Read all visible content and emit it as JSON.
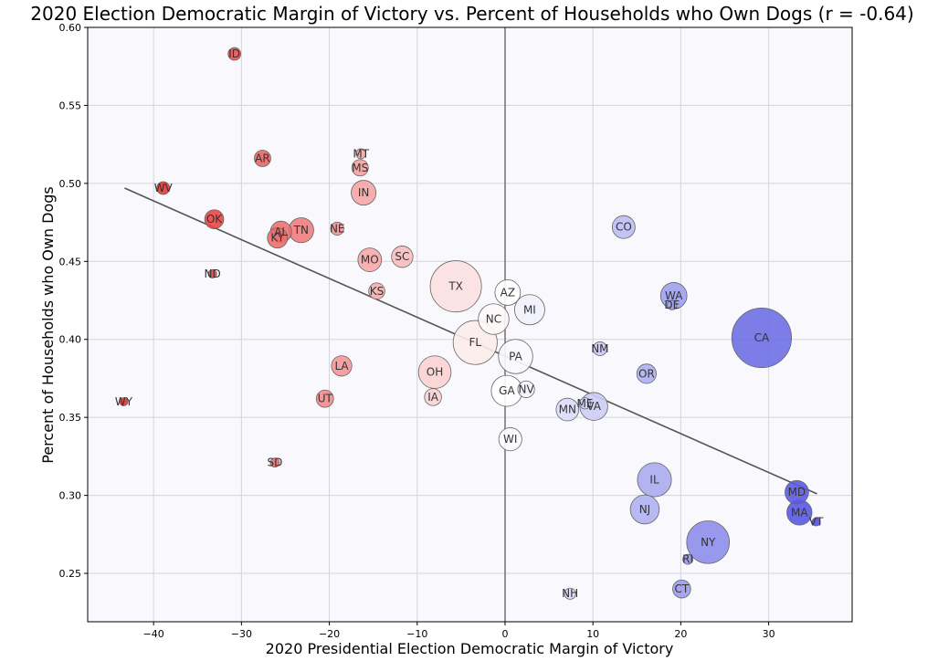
{
  "chart_data": {
    "type": "scatter",
    "title": "2020 Election Democratic Margin of Victory vs. Percent of Households who Own Dogs (r = -0.64)",
    "xlabel": "2020 Presidential Election Democratic Margin of Victory",
    "ylabel": "Percent of Households who Own Dogs",
    "xlim": [
      -47.5,
      39.5
    ],
    "ylim": [
      0.219,
      0.6
    ],
    "xticks": [
      -40,
      -30,
      -20,
      -10,
      0,
      10,
      20,
      30
    ],
    "yticks": [
      0.25,
      0.3,
      0.35,
      0.4,
      0.45,
      0.5,
      0.55,
      0.6
    ],
    "xtick_labels": [
      "−40",
      "−30",
      "−20",
      "−10",
      "0",
      "10",
      "20",
      "30"
    ],
    "ytick_labels": [
      "0.25",
      "0.30",
      "0.35",
      "0.40",
      "0.45",
      "0.50",
      "0.55",
      "0.60"
    ],
    "grid": true,
    "vertical_reference_line_x": 0,
    "point_size_encoding": "state population",
    "point_color_encoding": "margin (red = Republican, blue = Democratic)",
    "colors": {
      "background": "#f8f8fd",
      "republican": "#e83535",
      "neutral": "#ffffff",
      "democratic": "#4d4de0",
      "trendline": "#555555",
      "reference_line": "#7a7a7a",
      "grid": "#d4d4dc"
    },
    "trendline": {
      "x": [
        -43.3,
        35.5
      ],
      "y": [
        0.497,
        0.301
      ]
    },
    "points": [
      {
        "label": "ID",
        "x": -30.8,
        "y": 0.583,
        "pop": 1.8
      },
      {
        "label": "MT",
        "x": -16.4,
        "y": 0.519,
        "pop": 1.1
      },
      {
        "label": "AR",
        "x": -27.6,
        "y": 0.516,
        "pop": 3.0
      },
      {
        "label": "MS",
        "x": -16.5,
        "y": 0.51,
        "pop": 3.0
      },
      {
        "label": "WV",
        "x": -38.9,
        "y": 0.497,
        "pop": 1.8
      },
      {
        "label": "IN",
        "x": -16.1,
        "y": 0.494,
        "pop": 6.8
      },
      {
        "label": "OK",
        "x": -33.1,
        "y": 0.477,
        "pop": 4.0
      },
      {
        "label": "AL",
        "x": -25.5,
        "y": 0.469,
        "pop": 5.0
      },
      {
        "label": "TN",
        "x": -23.2,
        "y": 0.47,
        "pop": 6.9
      },
      {
        "label": "NE",
        "x": -19.1,
        "y": 0.471,
        "pop": 1.9
      },
      {
        "label": "KY",
        "x": -25.9,
        "y": 0.465,
        "pop": 4.5
      },
      {
        "label": "SC",
        "x": -11.7,
        "y": 0.453,
        "pop": 5.1
      },
      {
        "label": "MO",
        "x": -15.4,
        "y": 0.451,
        "pop": 6.2
      },
      {
        "label": "ND",
        "x": -33.3,
        "y": 0.442,
        "pop": 0.8
      },
      {
        "label": "KS",
        "x": -14.6,
        "y": 0.431,
        "pop": 2.9
      },
      {
        "label": "TX",
        "x": -5.6,
        "y": 0.434,
        "pop": 29.1
      },
      {
        "label": "AZ",
        "x": 0.3,
        "y": 0.43,
        "pop": 7.2
      },
      {
        "label": "CO",
        "x": 13.5,
        "y": 0.472,
        "pop": 5.8
      },
      {
        "label": "WA",
        "x": 19.2,
        "y": 0.428,
        "pop": 7.7
      },
      {
        "label": "DE",
        "x": 19.0,
        "y": 0.422,
        "pop": 1.0
      },
      {
        "label": "MI",
        "x": 2.8,
        "y": 0.419,
        "pop": 10.1
      },
      {
        "label": "NC",
        "x": -1.3,
        "y": 0.413,
        "pop": 10.4
      },
      {
        "label": "CA",
        "x": 29.2,
        "y": 0.401,
        "pop": 39.5
      },
      {
        "label": "FL",
        "x": -3.4,
        "y": 0.398,
        "pop": 21.5
      },
      {
        "label": "NM",
        "x": 10.8,
        "y": 0.394,
        "pop": 2.1
      },
      {
        "label": "PA",
        "x": 1.2,
        "y": 0.389,
        "pop": 13.0
      },
      {
        "label": "LA",
        "x": -18.6,
        "y": 0.383,
        "pop": 4.6
      },
      {
        "label": "OH",
        "x": -8.0,
        "y": 0.379,
        "pop": 11.8
      },
      {
        "label": "OR",
        "x": 16.1,
        "y": 0.378,
        "pop": 4.2
      },
      {
        "label": "NV",
        "x": 2.4,
        "y": 0.368,
        "pop": 3.1
      },
      {
        "label": "GA",
        "x": 0.2,
        "y": 0.367,
        "pop": 10.7
      },
      {
        "label": "IA",
        "x": -8.2,
        "y": 0.363,
        "pop": 3.2
      },
      {
        "label": "UT",
        "x": -20.5,
        "y": 0.362,
        "pop": 3.3
      },
      {
        "label": "WY",
        "x": -43.4,
        "y": 0.36,
        "pop": 0.6
      },
      {
        "label": "ME",
        "x": 9.1,
        "y": 0.359,
        "pop": 1.4
      },
      {
        "label": "VA",
        "x": 10.1,
        "y": 0.357,
        "pop": 8.6
      },
      {
        "label": "MN",
        "x": 7.1,
        "y": 0.355,
        "pop": 5.7
      },
      {
        "label": "WI",
        "x": 0.6,
        "y": 0.336,
        "pop": 5.9
      },
      {
        "label": "SD",
        "x": -26.2,
        "y": 0.321,
        "pop": 0.9
      },
      {
        "label": "IL",
        "x": 17.0,
        "y": 0.31,
        "pop": 12.8
      },
      {
        "label": "MD",
        "x": 33.2,
        "y": 0.302,
        "pop": 6.2
      },
      {
        "label": "NJ",
        "x": 15.9,
        "y": 0.291,
        "pop": 9.3
      },
      {
        "label": "MA",
        "x": 33.5,
        "y": 0.289,
        "pop": 7.0
      },
      {
        "label": "VT",
        "x": 35.4,
        "y": 0.283,
        "pop": 0.6
      },
      {
        "label": "NY",
        "x": 23.1,
        "y": 0.27,
        "pop": 20.2
      },
      {
        "label": "RI",
        "x": 20.8,
        "y": 0.259,
        "pop": 1.1
      },
      {
        "label": "CT",
        "x": 20.1,
        "y": 0.24,
        "pop": 3.6
      },
      {
        "label": "NH",
        "x": 7.4,
        "y": 0.237,
        "pop": 1.4
      }
    ]
  }
}
